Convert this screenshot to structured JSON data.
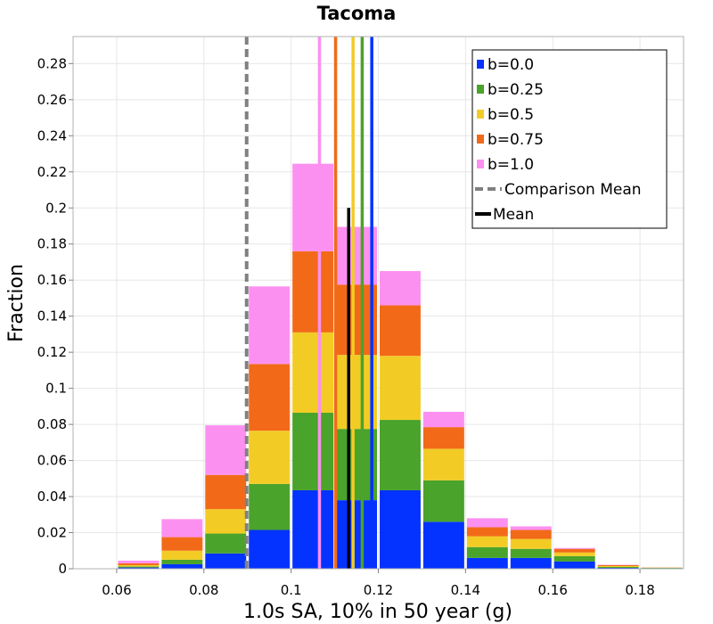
{
  "chart_data": {
    "type": "bar",
    "stacked": true,
    "title": "Tacoma",
    "xlabel": "1.0s SA, 10% in 50 year (g)",
    "ylabel": "Fraction",
    "xlim": [
      0.05,
      0.19
    ],
    "ylim": [
      0,
      0.295
    ],
    "xticks": [
      "0.06",
      "0.08",
      "0.1",
      "0.12",
      "0.14",
      "0.16",
      "0.18"
    ],
    "yticks": [
      "0",
      "0.02",
      "0.04",
      "0.06",
      "0.08",
      "0.1",
      "0.12",
      "0.14",
      "0.16",
      "0.18",
      "0.2",
      "0.22",
      "0.24",
      "0.26",
      "0.28"
    ],
    "bin_width": 0.01,
    "bin_centers": [
      0.055,
      0.065,
      0.075,
      0.085,
      0.095,
      0.105,
      0.115,
      0.125,
      0.135,
      0.145,
      0.155,
      0.165,
      0.175,
      0.185
    ],
    "series": [
      {
        "name": "b=0.0",
        "color": "#0433ff",
        "values": [
          0.0,
          0.0007,
          0.0025,
          0.0085,
          0.0215,
          0.0435,
          0.038,
          0.0435,
          0.026,
          0.006,
          0.006,
          0.004,
          0.0005,
          0.0003
        ]
      },
      {
        "name": "b=0.25",
        "color": "#4aa32a",
        "values": [
          0.0,
          0.0005,
          0.0025,
          0.011,
          0.0255,
          0.043,
          0.0395,
          0.039,
          0.023,
          0.006,
          0.005,
          0.003,
          0.0005,
          0.0002
        ]
      },
      {
        "name": "b=0.5",
        "color": "#f2cc25",
        "values": [
          0.0,
          0.0008,
          0.005,
          0.0135,
          0.0295,
          0.0445,
          0.041,
          0.0355,
          0.0175,
          0.006,
          0.0055,
          0.002,
          0.0005,
          0.0001
        ]
      },
      {
        "name": "b=0.75",
        "color": "#f26a18",
        "values": [
          0.0,
          0.001,
          0.0075,
          0.019,
          0.037,
          0.045,
          0.039,
          0.028,
          0.012,
          0.005,
          0.005,
          0.002,
          0.0005,
          0.0001
        ]
      },
      {
        "name": "b=1.0",
        "color": "#fc90f0",
        "values": [
          0.0,
          0.0015,
          0.01,
          0.0275,
          0.043,
          0.0485,
          0.032,
          0.019,
          0.0085,
          0.005,
          0.002,
          0.0005,
          0.0002,
          0.0
        ]
      }
    ],
    "vertical_lines": [
      {
        "series": "b=1.0",
        "x": 0.1065,
        "color": "#fc90f0"
      },
      {
        "series": "b=0.75",
        "x": 0.1102,
        "color": "#f26a18"
      },
      {
        "series": "b=0.5",
        "x": 0.1142,
        "color": "#f2cc25"
      },
      {
        "series": "b=0.25",
        "x": 0.1163,
        "color": "#4aa32a"
      },
      {
        "series": "b=0.0",
        "x": 0.1185,
        "color": "#0433ff"
      },
      {
        "series": "Mean",
        "x": 0.1132,
        "color": "#000000",
        "ymax": 0.2
      },
      {
        "series": "Comparison Mean",
        "x": 0.0898,
        "color": "#808080",
        "dashed": true
      }
    ],
    "legend": {
      "position": "top-right",
      "entries": [
        {
          "label": "b=0.0",
          "color": "#0433ff",
          "style": "box"
        },
        {
          "label": "b=0.25",
          "color": "#4aa32a",
          "style": "box"
        },
        {
          "label": "b=0.5",
          "color": "#f2cc25",
          "style": "box"
        },
        {
          "label": "b=0.75",
          "color": "#f26a18",
          "style": "box"
        },
        {
          "label": "b=1.0",
          "color": "#fc90f0",
          "style": "box"
        },
        {
          "label": "Comparison Mean",
          "color": "#808080",
          "style": "dashed"
        },
        {
          "label": "Mean",
          "color": "#000000",
          "style": "line"
        }
      ]
    }
  }
}
